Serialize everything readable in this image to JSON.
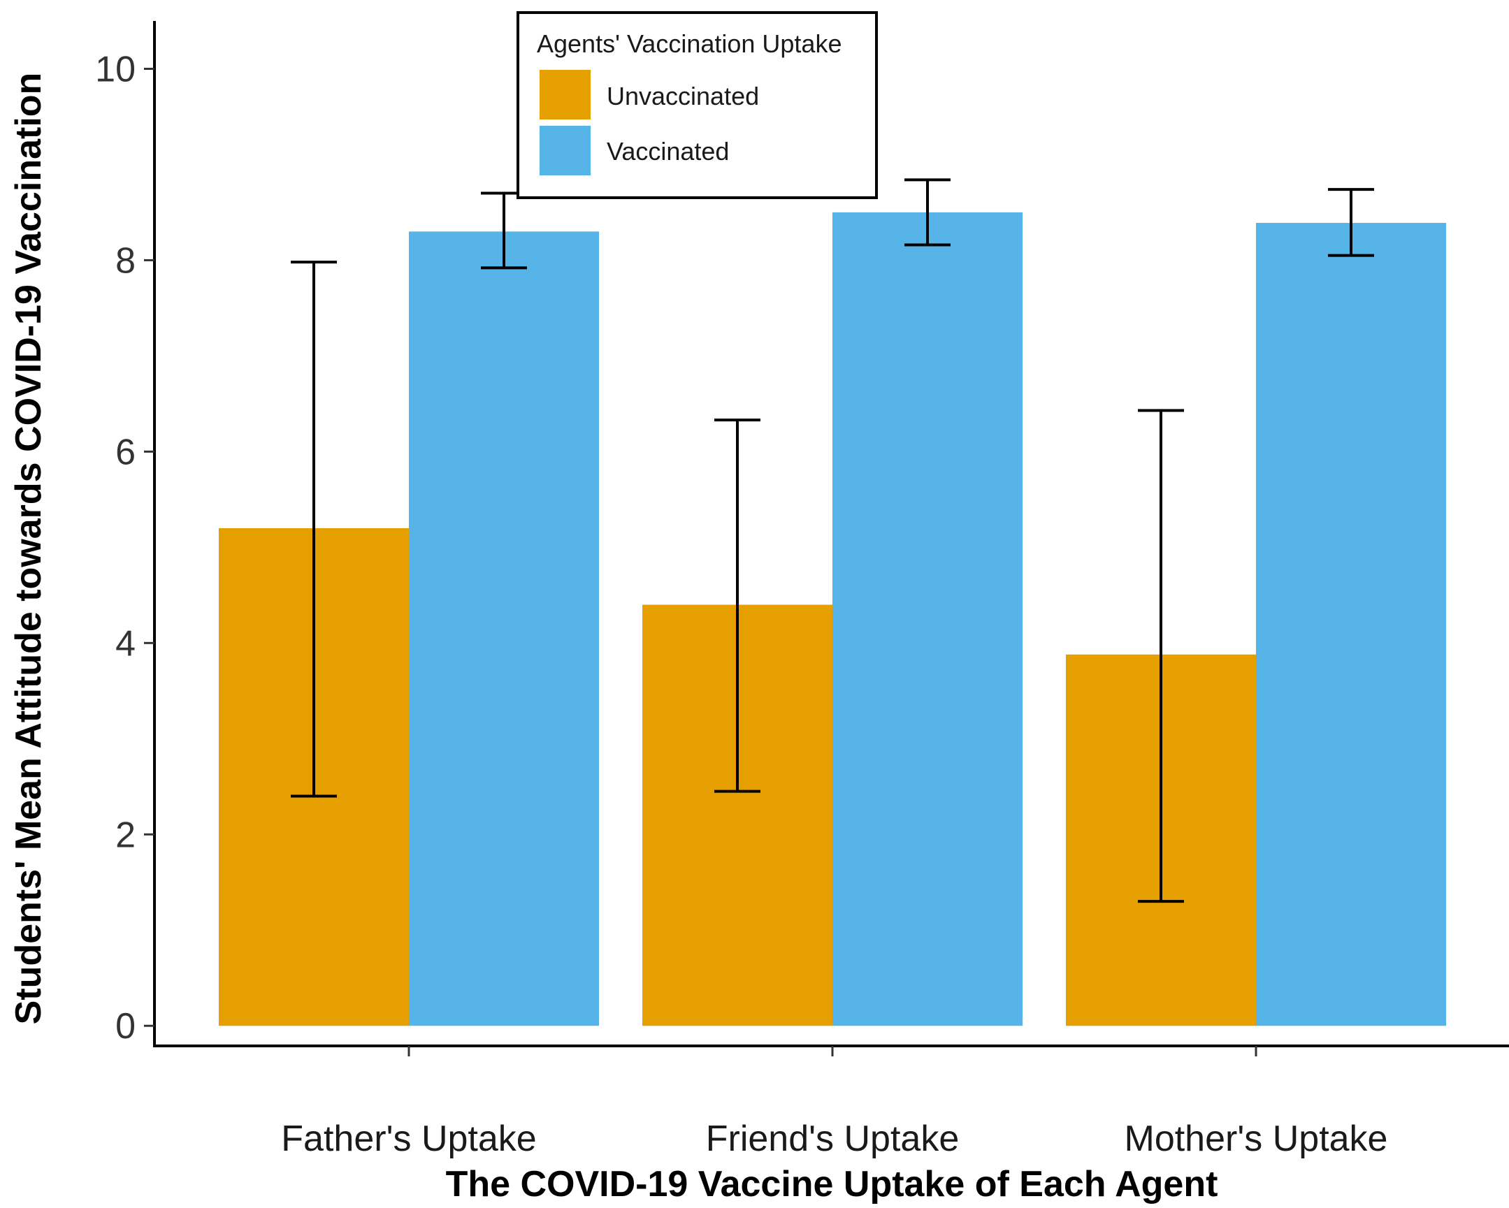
{
  "chart_data": {
    "type": "bar",
    "categories": [
      "Father's Uptake",
      "Friend's Uptake",
      "Mother's Uptake"
    ],
    "series": [
      {
        "name": "Unvaccinated",
        "color": "#E69F00",
        "values": [
          5.2,
          4.4,
          3.88
        ],
        "error_low": [
          2.4,
          2.45,
          1.3
        ],
        "error_high": [
          7.98,
          6.33,
          6.43
        ]
      },
      {
        "name": "Vaccinated",
        "color": "#56B4E9",
        "values": [
          8.3,
          8.5,
          8.39
        ],
        "error_low": [
          7.92,
          8.16,
          8.05
        ],
        "error_high": [
          8.7,
          8.84,
          8.74
        ]
      }
    ],
    "xlabel": "The COVID-19 Vaccine Uptake of Each Agent",
    "ylabel": "Students' Mean Attitude towards COVID-19 Vaccination",
    "ylim": [
      -0.21,
      10.5
    ],
    "yticks": [
      0,
      2,
      4,
      6,
      8,
      10
    ],
    "ytick_labels": [
      "0",
      "2",
      "4",
      "6",
      "8",
      "10"
    ],
    "legend": {
      "title": "Agents' Vaccination Uptake",
      "position": "top-center",
      "entries": [
        "Unvaccinated",
        "Vaccinated"
      ]
    },
    "grid": false
  }
}
